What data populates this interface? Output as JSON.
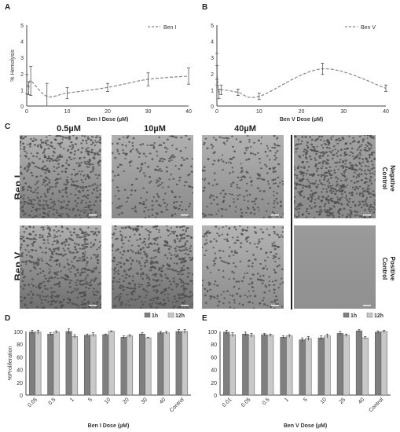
{
  "panels": {
    "A": "A",
    "B": "B",
    "C": "C",
    "D": "D",
    "E": "E"
  },
  "microscopy": {
    "col_headers": [
      "0.5µM",
      "10µM",
      "40µM"
    ],
    "row_labels": [
      "Ben I",
      "Ben V"
    ],
    "control_labels": [
      [
        "Negative",
        "Control"
      ],
      [
        "Positive",
        "Control"
      ]
    ]
  },
  "colors": {
    "dark_bar": "#7f7f7f",
    "light_bar": "#c8c8c8",
    "line": "#888888"
  },
  "chart_data": [
    {
      "id": "A",
      "type": "line",
      "style": "dashed smoothed with error bars",
      "series": [
        {
          "name": "Ben I",
          "points": [
            [
              0.05,
              1.35
            ],
            [
              0.5,
              1.1
            ],
            [
              1,
              1.55
            ],
            [
              5,
              0.6
            ],
            [
              10,
              0.8
            ],
            [
              20,
              1.15
            ],
            [
              30,
              1.65
            ],
            [
              40,
              1.85
            ]
          ],
          "err": [
            0.6,
            0.4,
            0.9,
            0.8,
            0.35,
            0.25,
            0.4,
            0.5
          ]
        }
      ],
      "xlabel": "Ben I Dose (µM)",
      "ylabel": "% Hemolysis",
      "xlim": [
        0,
        40
      ],
      "ylim": [
        0,
        5
      ],
      "xticks": [
        0,
        10,
        20,
        30,
        40
      ],
      "yticks": [
        0,
        1,
        2,
        3,
        4,
        5
      ],
      "legend": "top-right"
    },
    {
      "id": "B",
      "type": "line",
      "style": "dashed smoothed with error bars",
      "series": [
        {
          "name": "Ben V",
          "points": [
            [
              0.01,
              2.45
            ],
            [
              0.05,
              1.9
            ],
            [
              0.5,
              0.75
            ],
            [
              1,
              1.0
            ],
            [
              5,
              0.85
            ],
            [
              10,
              0.6
            ],
            [
              25,
              2.3
            ],
            [
              40,
              1.1
            ]
          ],
          "err": [
            0.8,
            0.6,
            0.3,
            0.3,
            0.2,
            0.2,
            0.35,
            0.2
          ]
        }
      ],
      "xlabel": "Ben V Dose (µM)",
      "ylabel": "",
      "xlim": [
        0,
        40
      ],
      "ylim": [
        0,
        5
      ],
      "xticks": [
        0,
        10,
        20,
        30,
        40
      ],
      "yticks": [
        0,
        1,
        2,
        3,
        4,
        5
      ],
      "legend": "top-right"
    },
    {
      "id": "D",
      "type": "bar",
      "categories": [
        "0.05",
        "0.5",
        "1",
        "5",
        "10",
        "20",
        "30",
        "40",
        "Control"
      ],
      "series": [
        {
          "name": "1h",
          "values": [
            99,
            96,
            100,
            94,
            95,
            91,
            96,
            98,
            100
          ],
          "err": [
            3,
            2,
            4,
            2,
            1,
            2,
            2,
            2,
            3
          ]
        },
        {
          "name": "12h",
          "values": [
            99,
            99,
            92,
            95,
            100,
            93,
            90,
            98,
            100
          ],
          "err": [
            3,
            2,
            3,
            3,
            1,
            2,
            1,
            2,
            3
          ]
        }
      ],
      "xlabel": "Ben I Dose (µM)",
      "ylabel": "%Proliferation",
      "ylim": [
        0,
        100
      ],
      "yticks": [
        0,
        20,
        40,
        60,
        80,
        100
      ],
      "legend": "top-right"
    },
    {
      "id": "E",
      "type": "bar",
      "categories": [
        "0.01",
        "0.05",
        "0.5",
        "1",
        "5",
        "10",
        "25",
        "40",
        "Control"
      ],
      "series": [
        {
          "name": "1h",
          "values": [
            99,
            96,
            95,
            91,
            87,
            90,
            97,
            101,
            99
          ],
          "err": [
            3,
            3,
            2,
            2,
            3,
            3,
            3,
            2,
            2
          ]
        },
        {
          "name": "12h",
          "values": [
            95,
            94,
            94,
            93,
            89,
            93,
            94,
            90,
            100
          ],
          "err": [
            3,
            3,
            2,
            2,
            3,
            3,
            2,
            2,
            2
          ]
        }
      ],
      "xlabel": "Ben V Dose (µM)",
      "ylabel": "",
      "ylim": [
        0,
        100
      ],
      "yticks": [
        0,
        20,
        40,
        60,
        80,
        100
      ],
      "legend": "top-right"
    }
  ]
}
